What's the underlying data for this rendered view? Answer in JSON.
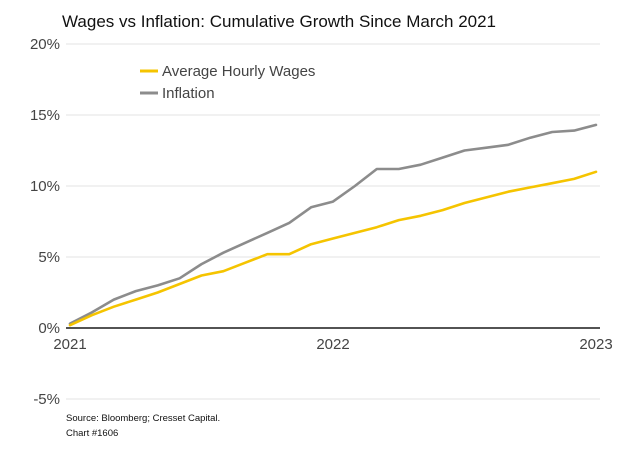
{
  "chart_data": {
    "type": "line",
    "title": "Wages vs Inflation: Cumulative Growth Since March 2021",
    "xlabel": "",
    "ylabel": "",
    "ylim": [
      -5,
      20
    ],
    "xlim": [
      "2021-03",
      "2023-03"
    ],
    "y_ticks": [
      "20%",
      "15%",
      "10%",
      "5%",
      "0%",
      "-5%"
    ],
    "y_tick_values": [
      20,
      15,
      10,
      5,
      0,
      -5
    ],
    "x_ticks": [
      "2021",
      "2022",
      "2023"
    ],
    "x_tick_positions": [
      "2021-03",
      "2022-03",
      "2023-03"
    ],
    "grid": "horizontal",
    "legend_position": "top-left",
    "x": [
      "2021-03",
      "2021-04",
      "2021-05",
      "2021-06",
      "2021-07",
      "2021-08",
      "2021-09",
      "2021-10",
      "2021-11",
      "2021-12",
      "2022-01",
      "2022-02",
      "2022-03",
      "2022-04",
      "2022-05",
      "2022-06",
      "2022-07",
      "2022-08",
      "2022-09",
      "2022-10",
      "2022-11",
      "2022-12",
      "2023-01",
      "2023-02",
      "2023-03"
    ],
    "series": [
      {
        "name": "Average Hourly Wages",
        "color": "#f5c400",
        "values": [
          0.2,
          0.9,
          1.5,
          2.0,
          2.5,
          3.1,
          3.7,
          4.0,
          4.6,
          5.2,
          5.2,
          5.9,
          6.3,
          6.7,
          7.1,
          7.6,
          7.9,
          8.3,
          8.8,
          9.2,
          9.6,
          9.9,
          10.2,
          10.5,
          11.0
        ]
      },
      {
        "name": "Inflation",
        "color": "#8c8c8c",
        "values": [
          0.3,
          1.1,
          2.0,
          2.6,
          3.0,
          3.5,
          4.5,
          5.3,
          6.0,
          6.7,
          7.4,
          8.5,
          8.9,
          10.0,
          11.2,
          11.2,
          11.5,
          12.0,
          12.5,
          12.7,
          12.9,
          13.4,
          13.8,
          13.9,
          14.3
        ]
      }
    ]
  },
  "source_note": "Source: Bloomberg; Cresset Capital.",
  "chart_number": "Chart #1606"
}
